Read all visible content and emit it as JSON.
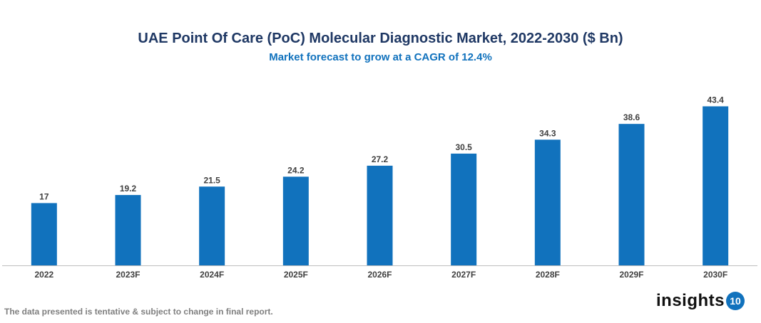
{
  "chart_data": {
    "type": "bar",
    "title": "UAE Point Of Care (PoC) Molecular Diagnostic Market, 2022-2030 ($ Bn)",
    "subtitle": "Market forecast to grow at a CAGR of 12.4%",
    "categories": [
      "2022",
      "2023F",
      "2024F",
      "2025F",
      "2026F",
      "2027F",
      "2028F",
      "2029F",
      "2030F"
    ],
    "values": [
      17,
      19.2,
      21.5,
      24.2,
      27.2,
      30.5,
      34.3,
      38.6,
      43.4
    ],
    "xlabel": "",
    "ylabel": "",
    "ylim": [
      0,
      53
    ],
    "grid": false,
    "bar_color": "#1172bd",
    "data_labels": true
  },
  "footer": {
    "note": "The data presented is tentative & subject to change in final report.",
    "logo_text": "insights",
    "logo_badge": "10"
  }
}
